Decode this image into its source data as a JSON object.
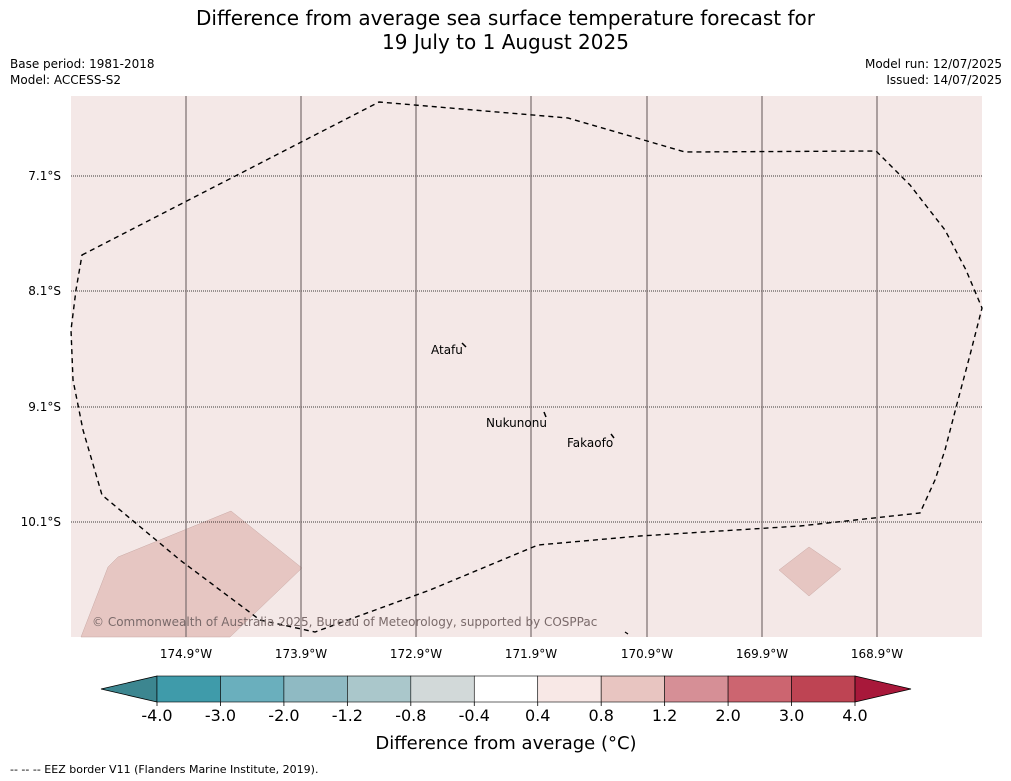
{
  "header": {
    "title_line1": "Difference from average sea surface temperature forecast for",
    "title_line2": "19 July to 1 August 2025",
    "base_period": "Base period: 1981-2018",
    "model": "Model: ACCESS-S2",
    "model_run": "Model run: 12/07/2025",
    "issued": "Issued: 14/07/2025"
  },
  "map": {
    "lat_labels": [
      "7.1°S",
      "8.1°S",
      "9.1°S",
      "10.1°S"
    ],
    "lon_labels": [
      "174.9°W",
      "173.9°W",
      "172.9°W",
      "171.9°W",
      "170.9°W",
      "169.9°W",
      "168.9°W"
    ],
    "places": [
      "Atafu",
      "Nukunonu",
      "Fakaofo"
    ],
    "background_color": "#f4e8e7",
    "anomaly_patch_color": "#e6c6c2",
    "copyright": "© Commonwealth of Australia 2025, Bureau of Meteorology, supported by COSPPac"
  },
  "colorbar": {
    "ticks": [
      "-4.0",
      "-3.0",
      "-2.0",
      "-1.2",
      "-0.8",
      "-0.4",
      "0.4",
      "0.8",
      "1.2",
      "2.0",
      "3.0",
      "4.0"
    ],
    "colors": [
      "#3f9baa",
      "#6aafbd",
      "#8fbac3",
      "#aac7cb",
      "#d2d9d9",
      "#ffffff",
      "#f8e8e6",
      "#e8c5c1",
      "#d68f96",
      "#cc6570",
      "#be4453"
    ],
    "low_extend_color": "#3c8690",
    "high_extend_color": "#a8183a",
    "label": "Difference from average (°C)"
  },
  "footer": {
    "legend": "--  --  -- EEZ border V11 (Flanders Marine Institute, 2019)."
  }
}
